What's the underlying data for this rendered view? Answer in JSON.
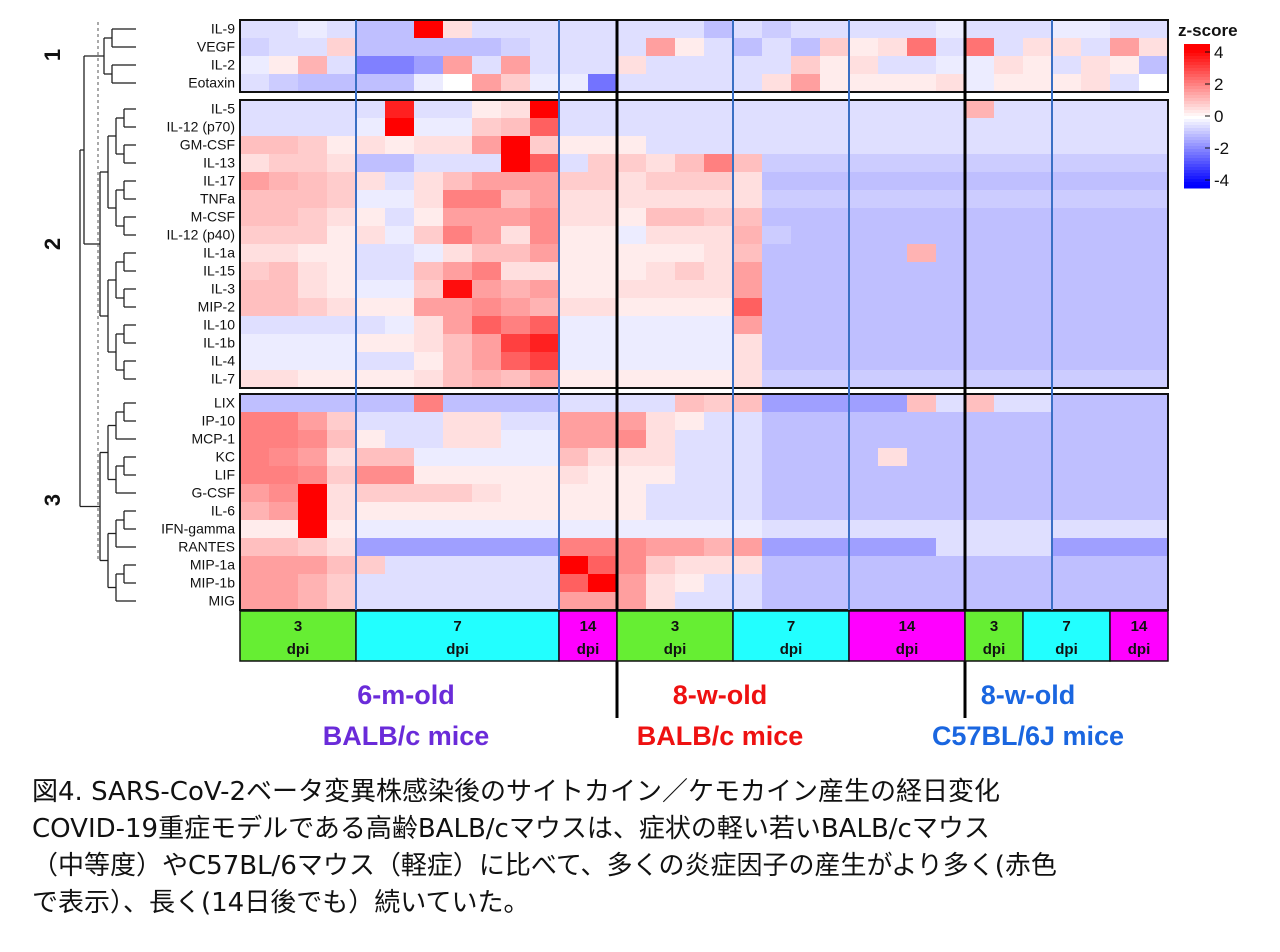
{
  "chart_data": {
    "type": "heatmap",
    "legend": {
      "title": "z-score",
      "ticks": [
        "4",
        "2",
        "0",
        "-2",
        "-4"
      ],
      "colors": {
        "low": "#0000ff",
        "mid": "#ffffff",
        "high": "#ff0000"
      }
    },
    "cluster_labels": [
      "1",
      "2",
      "3"
    ],
    "row_labels": [
      "IL-9",
      "VEGF",
      "IL-2",
      "Eotaxin",
      "IL-5",
      "IL-12 (p70)",
      "GM-CSF",
      "IL-13",
      "IL-17",
      "TNFa",
      "M-CSF",
      "IL-12 (p40)",
      "IL-1a",
      "IL-15",
      "IL-3",
      "MIP-2",
      "IL-10",
      "IL-1b",
      "IL-4",
      "IL-7",
      "LIX",
      "IP-10",
      "MCP-1",
      "KC",
      "LIF",
      "G-CSF",
      "IL-6",
      "IFN-gamma",
      "RANTES",
      "MIP-1a",
      "MIP-1b",
      "MIG"
    ],
    "dpi_groups": [
      {
        "day": "3",
        "unit": "dpi",
        "color": "#66ee33"
      },
      {
        "day": "7",
        "unit": "dpi",
        "color": "#22ffff"
      },
      {
        "day": "14",
        "unit": "dpi",
        "color": "#ff00ff"
      },
      {
        "day": "3",
        "unit": "dpi",
        "color": "#66ee33"
      },
      {
        "day": "7",
        "unit": "dpi",
        "color": "#22ffff"
      },
      {
        "day": "14",
        "unit": "dpi",
        "color": "#ff00ff"
      },
      {
        "day": "3",
        "unit": "dpi",
        "color": "#66ee33"
      },
      {
        "day": "7",
        "unit": "dpi",
        "color": "#22ffff"
      },
      {
        "day": "14",
        "unit": "dpi",
        "color": "#ff00ff"
      }
    ],
    "mouse_groups": [
      {
        "line1": "6-m-old",
        "line2": "BALB/c mice",
        "color": "#6a2bd9"
      },
      {
        "line1": "8-w-old",
        "line2": "BALB/c mice",
        "color": "#ee1111"
      },
      {
        "line1": "8-w-old",
        "line2": "C57BL/6J mice",
        "color": "#1a66e0"
      }
    ],
    "values": [
      [
        -0.5,
        -0.5,
        -0.3,
        -0.5,
        -1,
        -1,
        4,
        0.5,
        -0.5,
        -0.5,
        -0.5,
        -0.5,
        -0.5,
        -0.5,
        -0.5,
        -0.5,
        -1,
        -0.5,
        -0.8,
        -0.5,
        -0.5,
        -0.5,
        -0.5,
        -0.5,
        -0.3,
        -0.5,
        -0.5,
        -0.5,
        -0.3,
        -0.3,
        -0.5,
        -0.5,
        -0.5,
        0.7,
        0.3,
        0.3
      ],
      [
        -0.7,
        -0.5,
        -0.5,
        0.7,
        -1,
        -1,
        -1,
        -1,
        -1,
        -0.7,
        -0.5,
        -0.5,
        -0.5,
        -0.5,
        1.5,
        0.3,
        -0.5,
        -1,
        -0.5,
        -1,
        0.8,
        0.3,
        0.5,
        2.2,
        -0.5,
        2.2,
        -0.5,
        0.5,
        0.5,
        -0.5,
        1.5,
        0.5,
        2.8
      ],
      [
        -0.3,
        0.3,
        1.2,
        -0.5,
        -2,
        -2,
        -1.5,
        1.5,
        -0.5,
        1.5,
        -0.5,
        -0.5,
        -0.5,
        0.5,
        -0.5,
        -0.5,
        -0.5,
        -0.5,
        -0.5,
        0.8,
        0.3,
        0.5,
        -0.5,
        -0.5,
        -0.3,
        -0.3,
        0.5,
        0.3,
        -0.5,
        0.5,
        0.3,
        -1,
        -0.3
      ],
      [
        -0.5,
        -0.8,
        -1,
        -1,
        -1,
        -1,
        -0.3,
        0,
        1.5,
        0.8,
        -0.3,
        -0.3,
        -2.2,
        -0.5,
        -0.5,
        -0.5,
        -0.5,
        -0.5,
        0.5,
        1.5,
        0.3,
        0.3,
        0.3,
        0.3,
        0.5,
        -0.3,
        0.3,
        0.3,
        0.3,
        0.5,
        -0.5
      ],
      [
        -0.5,
        -0.5,
        -0.5,
        -0.5,
        -0.5,
        3.5,
        -0.5,
        -0.5,
        0.3,
        0.5,
        4,
        -0.5,
        -0.5,
        -0.5,
        -0.5,
        -0.5,
        -0.5,
        -0.5,
        -0.5,
        -0.5,
        -0.5,
        -0.5,
        -0.5,
        -0.5,
        -0.5,
        1.2,
        -0.5,
        -0.5,
        -0.5,
        -0.5,
        -0.5,
        -0.5,
        -0.5
      ],
      [
        -0.5,
        -0.5,
        -0.5,
        -0.5,
        -0.3,
        4,
        -0.3,
        -0.3,
        0.8,
        1,
        2.5,
        -0.5,
        -0.5,
        -0.5,
        -0.5,
        -0.5,
        -0.5,
        -0.5,
        -0.5,
        -0.5,
        -0.5,
        -0.5,
        -0.5,
        -0.5,
        -0.5,
        -0.5,
        -0.5,
        -0.5,
        -0.5,
        -0.5,
        -0.5,
        -0.5,
        -0.5
      ],
      [
        1,
        1,
        0.8,
        0.3,
        0.5,
        0.3,
        0.5,
        0.5,
        1.5,
        4,
        0.8,
        0.3,
        0.3,
        0.3,
        -0.5,
        -0.5,
        -0.5,
        -0.5,
        -0.5,
        -0.5,
        -0.5,
        -0.5,
        -0.5,
        -0.5,
        -0.5,
        -0.5,
        -0.5,
        -0.5,
        -0.5,
        -0.5,
        -0.5,
        -0.5,
        -0.5
      ],
      [
        0.5,
        0.8,
        0.8,
        0.5,
        -1,
        -1,
        -0.5,
        -0.5,
        -0.5,
        4,
        2.5,
        -0.5,
        0.8,
        0.8,
        0.5,
        1,
        2,
        1,
        -0.8,
        -0.8,
        -0.8,
        -0.8,
        -0.8,
        -0.8,
        -0.8,
        -0.8,
        -0.8,
        -0.8,
        -0.8,
        -0.8,
        -0.8,
        -0.8,
        -0.8
      ],
      [
        1.5,
        1.2,
        1,
        0.8,
        0.5,
        -0.5,
        0.5,
        1,
        1.5,
        1.5,
        1.5,
        0.8,
        0.8,
        0.5,
        0.8,
        0.8,
        0.8,
        0.5,
        -1,
        -1,
        -1,
        -1,
        -1,
        -1,
        -1,
        -1,
        -1,
        -1,
        -1,
        -1,
        -1,
        -1,
        -1
      ],
      [
        1,
        1,
        1,
        0.8,
        -0.3,
        -0.3,
        0.5,
        2,
        2,
        1,
        1.5,
        0.5,
        0.5,
        0.5,
        0.5,
        0.5,
        0.5,
        0.5,
        -0.8,
        -0.8,
        -0.8,
        -0.8,
        -0.8,
        -0.8,
        -0.8,
        -0.8,
        -0.8,
        -0.8,
        -0.8,
        -0.8,
        -0.8,
        -0.8,
        -0.8
      ],
      [
        1,
        1,
        0.8,
        0.5,
        0.3,
        -0.5,
        0.3,
        1.5,
        1.5,
        1.5,
        1.8,
        0.5,
        0.5,
        0.3,
        1,
        1,
        0.8,
        1,
        -1,
        -1,
        -1,
        -1,
        -1,
        -1,
        -1,
        -1,
        -1,
        -1,
        -1,
        -1,
        -1,
        -1,
        -1
      ],
      [
        0.8,
        0.8,
        0.8,
        0.3,
        0.5,
        -0.3,
        0.8,
        2,
        1.5,
        0.5,
        1.8,
        0.3,
        0.3,
        -0.3,
        0.5,
        0.5,
        0.5,
        1.2,
        -0.8,
        -1,
        -1,
        -1,
        -1,
        -1,
        -1,
        -1,
        -1,
        -1,
        -1,
        -1,
        -1,
        -1,
        -1
      ],
      [
        0.5,
        0.5,
        0.3,
        0.3,
        -0.5,
        -0.5,
        -0.3,
        0.5,
        1,
        1,
        1.5,
        0.3,
        0.3,
        0.3,
        0.3,
        0.3,
        0.5,
        1,
        -1,
        -1,
        -1,
        -1,
        -1,
        1.2,
        -1,
        -1,
        -1,
        -1,
        -1,
        -1,
        -1,
        -1,
        -1.5
      ],
      [
        0.8,
        1,
        0.5,
        0.3,
        -0.5,
        -0.5,
        1,
        1.5,
        2,
        0.5,
        0.5,
        0.3,
        0.3,
        0.3,
        0.5,
        0.8,
        0.5,
        1.5,
        -1,
        -1,
        -1,
        -1,
        -1,
        -1,
        -1,
        -1,
        -1,
        -1,
        -1,
        -1,
        -1,
        -1,
        -1
      ],
      [
        1,
        1,
        0.5,
        0.3,
        -0.3,
        -0.3,
        0.8,
        3.8,
        1.5,
        1.2,
        1.5,
        0.3,
        0.3,
        0.5,
        0.5,
        0.5,
        0.5,
        1.5,
        -1,
        -1,
        -1,
        -1,
        -1,
        -1,
        -1,
        -1,
        -1,
        -1,
        -1,
        -1,
        -1,
        -1,
        -1
      ],
      [
        1,
        1,
        0.8,
        0.5,
        0.3,
        0.3,
        1.5,
        1.5,
        1.8,
        1.5,
        1.2,
        0.5,
        0.5,
        0.3,
        0.3,
        0.3,
        0.3,
        2.5,
        -1,
        -1,
        -1,
        -1,
        -1,
        -1,
        -1,
        -1,
        -1,
        -1,
        -1,
        -1,
        -1,
        -1,
        -1
      ],
      [
        -0.5,
        -0.5,
        -0.5,
        -0.5,
        -0.5,
        -0.3,
        0.5,
        1.5,
        2.5,
        2,
        2.5,
        -0.3,
        -0.3,
        -0.3,
        -0.3,
        -0.3,
        -0.3,
        1.5,
        -1,
        -1,
        -1,
        -1,
        -1,
        -1,
        -1,
        -1,
        -1,
        -1,
        -1,
        -1,
        -1,
        -1,
        -1
      ],
      [
        -0.3,
        -0.3,
        -0.3,
        -0.3,
        0.3,
        0.3,
        0.5,
        1,
        1.5,
        3,
        3.5,
        -0.3,
        -0.3,
        -0.3,
        -0.3,
        -0.3,
        -0.3,
        0.5,
        -1,
        -1,
        -1,
        -1,
        -1,
        -1,
        -1,
        -1,
        -1,
        -1,
        -1,
        -1,
        -1,
        -1,
        -1
      ],
      [
        -0.3,
        -0.3,
        -0.3,
        -0.3,
        -0.5,
        -0.5,
        0.3,
        1,
        1.5,
        2.5,
        3,
        -0.3,
        -0.3,
        -0.3,
        -0.3,
        -0.3,
        -0.3,
        0.5,
        -1,
        -1,
        -1,
        -1,
        -1,
        -1,
        -1,
        -1,
        -1,
        -1,
        -1,
        -1,
        -1,
        -1,
        -1
      ],
      [
        0.5,
        0.5,
        0.3,
        0.3,
        0.3,
        0.3,
        0.5,
        1,
        1.2,
        1,
        1.5,
        0.3,
        0.3,
        0.3,
        0.3,
        0.3,
        0.3,
        0.5,
        -0.8,
        -0.8,
        -0.8,
        -0.8,
        -0.8,
        -0.8,
        -0.8,
        -0.8,
        -0.8,
        -0.8,
        -0.8,
        -0.8,
        -0.8,
        -0.8,
        -0.8
      ],
      [
        -1,
        -1,
        -1,
        -1,
        -1,
        -1,
        2,
        -1,
        -1,
        -1,
        -1,
        -0.5,
        -0.5,
        -0.5,
        -0.5,
        1,
        0.8,
        1,
        -1.5,
        -1.5,
        -1.5,
        -1.5,
        -1.5,
        1,
        -0.5,
        1,
        -0.5,
        -0.5,
        -1,
        -1,
        -1,
        -1,
        -1.5
      ],
      [
        2,
        2,
        1.5,
        0.8,
        -0.5,
        -0.5,
        -0.5,
        0.5,
        0.5,
        -0.5,
        -0.5,
        1.5,
        1.5,
        1.5,
        0.5,
        0.3,
        -0.5,
        -0.5,
        -1,
        -1,
        -1,
        -1,
        -1,
        -1,
        -1,
        -1,
        -1,
        -1,
        -1,
        -1,
        -1,
        -1,
        -1
      ],
      [
        2,
        2,
        1.8,
        1,
        0.3,
        -0.5,
        -0.5,
        0.5,
        0.5,
        -0.3,
        -0.3,
        1.5,
        1.5,
        1.8,
        0.5,
        -0.5,
        -0.5,
        -0.5,
        -1,
        -1,
        -1,
        -1,
        -1,
        -1,
        -1,
        -1,
        -1,
        -1,
        -1,
        -1,
        -1,
        -1,
        -1
      ],
      [
        2,
        1.8,
        1.5,
        0.5,
        1,
        1,
        -0.3,
        -0.3,
        -0.3,
        -0.3,
        -0.3,
        1,
        0.5,
        0.5,
        0.5,
        -0.5,
        -0.5,
        -0.5,
        -1,
        -1,
        -1,
        -1,
        0.5,
        -1,
        -1,
        -1,
        -1,
        -1,
        -1,
        -1,
        -1,
        -1,
        -1
      ],
      [
        2,
        2,
        1.8,
        0.8,
        1.8,
        1.8,
        0.3,
        0.3,
        0.3,
        0.3,
        0.3,
        0.5,
        0.3,
        0.3,
        0.3,
        -0.5,
        -0.5,
        -0.5,
        -1,
        -1,
        -1,
        -1,
        -1,
        -1,
        -1,
        -1,
        -1,
        -1,
        -1,
        -1,
        -1,
        -1,
        -1
      ],
      [
        1.5,
        1.8,
        4,
        0.5,
        0.8,
        0.8,
        0.8,
        0.8,
        0.5,
        0.3,
        0.3,
        0.3,
        0.3,
        0.3,
        -0.5,
        -0.5,
        -0.5,
        -0.5,
        -1,
        -1,
        -1,
        -1,
        -1,
        -1,
        -1,
        -1,
        -1,
        -1,
        -1,
        -1,
        -1,
        -1,
        -1
      ],
      [
        1.2,
        1.5,
        4,
        0.5,
        0.3,
        0.3,
        0.3,
        0.3,
        0.3,
        0.3,
        0.3,
        0.3,
        0.3,
        0.3,
        -0.5,
        -0.5,
        -0.5,
        -0.5,
        -1,
        -1,
        -1,
        -1,
        -1,
        -1,
        -1,
        -1,
        -1,
        -1,
        -1,
        -1,
        -1,
        -1,
        -1
      ],
      [
        0.3,
        0.3,
        4,
        0.3,
        -0.3,
        -0.3,
        -0.3,
        -0.3,
        -0.3,
        -0.3,
        -0.3,
        -0.3,
        -0.3,
        -0.3,
        -0.3,
        -0.3,
        -0.3,
        -0.3,
        -0.5,
        -0.5,
        -0.5,
        -0.5,
        -0.5,
        -0.5,
        -0.5,
        -0.5,
        -0.5,
        -0.5,
        -0.5,
        -0.5,
        -0.5,
        -0.5,
        -0.5
      ],
      [
        1,
        1,
        0.8,
        0.5,
        -1.5,
        -1.5,
        -1.5,
        -1.5,
        -1.5,
        -1.5,
        -1.5,
        2,
        2,
        1.8,
        1.5,
        1.5,
        1.2,
        1.5,
        -1.5,
        -1.5,
        -1.5,
        -1.5,
        -1.5,
        -1.5,
        -0.5,
        -0.5,
        -0.5,
        -0.5,
        -1.5,
        -1.5,
        -1.5,
        -1.5,
        -1.5
      ],
      [
        1.5,
        1.5,
        1.5,
        1,
        0.8,
        -0.5,
        -0.5,
        -0.5,
        -0.5,
        -0.5,
        -0.5,
        4,
        2.5,
        1.8,
        0.8,
        0.5,
        0.5,
        0.5,
        -1,
        -1,
        -1,
        -1,
        -1,
        -1,
        -1,
        -1,
        -1,
        -1,
        -1,
        -1,
        -1,
        -1,
        -1
      ],
      [
        1.5,
        1.5,
        1.2,
        0.8,
        -0.5,
        -0.5,
        -0.5,
        -0.5,
        -0.5,
        -0.5,
        -0.5,
        2.5,
        4,
        1.5,
        0.5,
        0.3,
        -0.5,
        -0.5,
        -1,
        -1,
        -1,
        -1,
        -1,
        -1,
        -1,
        -1,
        -1,
        -1,
        -1,
        -1,
        -1,
        -1,
        -1
      ],
      [
        1.5,
        1.5,
        1.2,
        0.8,
        -0.5,
        -0.5,
        -0.5,
        -0.5,
        -0.5,
        -0.5,
        -0.5,
        1.5,
        1.5,
        1.5,
        0.5,
        -0.5,
        -0.5,
        -0.5,
        -1,
        -1,
        -1,
        -1,
        -1,
        -1,
        -1,
        -1,
        -1,
        -1,
        -1,
        -1,
        -1,
        -1,
        -1
      ]
    ]
  },
  "caption": {
    "line1": "図4. SARS-CoV-2ベータ変異株感染後のサイトカイン／ケモカイン産生の経日変化",
    "line2": "COVID-19重症モデルである高齢BALB/cマウスは、症状の軽い若いBALB/cマウス",
    "line3": "（中等度）やC57BL/6マウス（軽症）に比べて、多くの炎症因子の産生がより多く(赤色",
    "line4": "で表示）、長く(14日後でも）続いていた。"
  }
}
